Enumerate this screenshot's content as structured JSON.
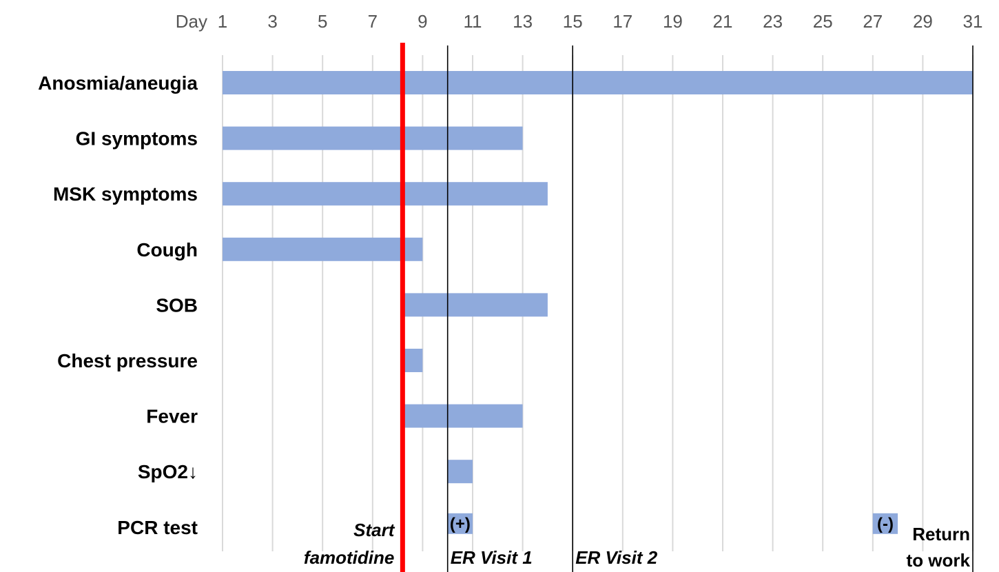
{
  "chart_data": {
    "type": "gantt",
    "x_axis": {
      "label": "Day",
      "min": 1,
      "max": 31,
      "ticks": [
        1,
        3,
        5,
        7,
        9,
        11,
        13,
        15,
        17,
        19,
        21,
        23,
        25,
        27,
        29,
        31
      ],
      "grid": true
    },
    "rows": [
      {
        "label": "Anosmia/aneugia",
        "bars": [
          [
            1,
            31
          ]
        ]
      },
      {
        "label": "GI symptoms",
        "bars": [
          [
            1,
            13
          ]
        ]
      },
      {
        "label": "MSK symptoms",
        "bars": [
          [
            1,
            14
          ]
        ]
      },
      {
        "label": "Cough",
        "bars": [
          [
            1,
            9
          ]
        ]
      },
      {
        "label": "SOB",
        "bars": [
          [
            8.2,
            14
          ]
        ]
      },
      {
        "label": "Chest pressure",
        "bars": [
          [
            8.2,
            9
          ]
        ]
      },
      {
        "label": "Fever",
        "bars": [
          [
            8.2,
            13
          ]
        ]
      },
      {
        "label": "SpO2↓",
        "bars": [
          [
            10,
            11
          ]
        ]
      },
      {
        "label": "PCR test",
        "bars": [
          [
            10,
            11,
            "(+)"
          ],
          [
            27,
            28,
            "(-)"
          ]
        ]
      }
    ],
    "events": [
      {
        "day": 8.2,
        "lines": [
          "Start",
          "famotidine"
        ],
        "color": "#ff0000",
        "style": "thick"
      },
      {
        "day": 10,
        "lines": [
          "ER Visit 1"
        ],
        "color": "#000000",
        "style": "thin"
      },
      {
        "day": 15,
        "lines": [
          "ER Visit 2"
        ],
        "color": "#000000",
        "style": "thin"
      },
      {
        "day": 31,
        "lines": [
          "Return",
          "to work"
        ],
        "color": "#000000",
        "style": "thin"
      }
    ],
    "colors": {
      "bar": "#8faadc",
      "grid": "#d9d9d9",
      "highlight": "#ff0000"
    }
  }
}
